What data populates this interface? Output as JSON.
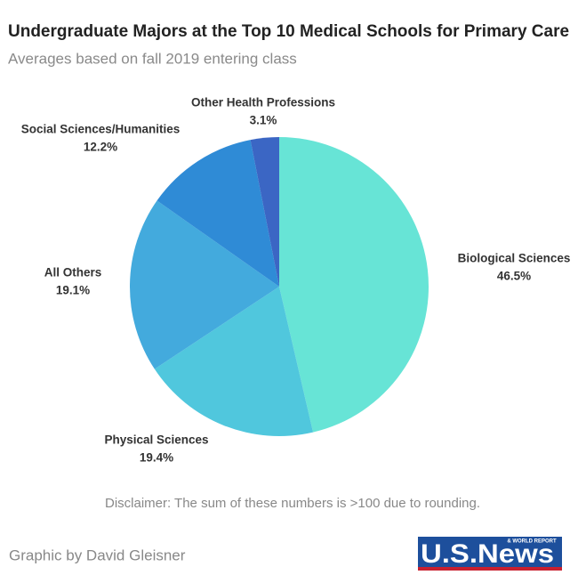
{
  "chart_data": {
    "type": "pie",
    "title": "Undergraduate Majors at the Top 10 Medical Schools for Primary Care",
    "subtitle": "Averages based on fall 2019 entering class",
    "categories": [
      "Biological Sciences",
      "Physical Sciences",
      "All Others",
      "Social Sciences/Humanities",
      "Other Health Professions"
    ],
    "values": [
      46.5,
      19.4,
      19.1,
      12.2,
      3.1
    ],
    "value_labels": [
      "46.5%",
      "19.4%",
      "19.1%",
      "12.2%",
      "3.1%"
    ],
    "colors": [
      "#67e4d6",
      "#50c7dd",
      "#43aadd",
      "#2f8bd6",
      "#3b66c4"
    ],
    "note": "Disclaimer: The sum of these numbers is >100 due to rounding.",
    "credit": "Graphic by David Gleisner",
    "logo": {
      "text": "U.S.News",
      "subtext": "& WORLD REPORT"
    }
  }
}
